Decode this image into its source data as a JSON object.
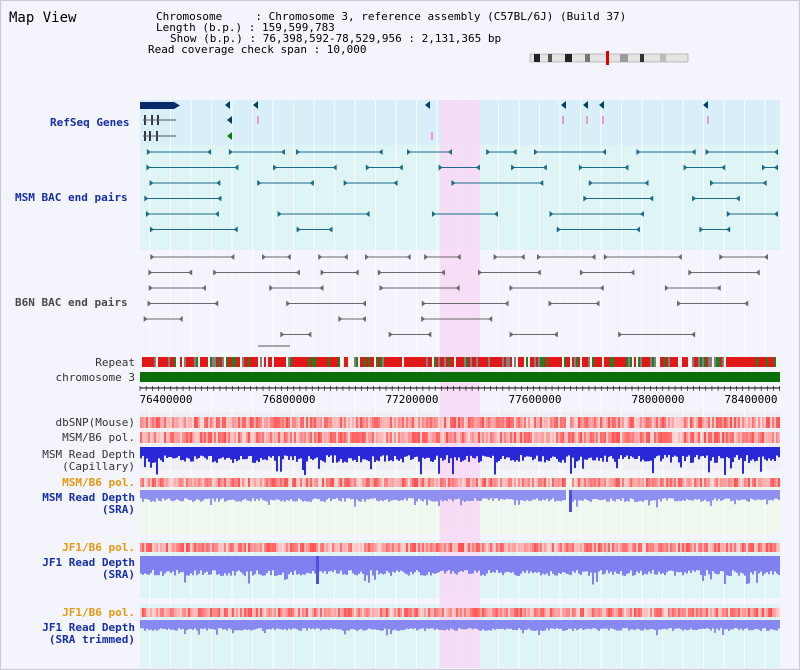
{
  "title": "Map View",
  "info": {
    "chromosome": "Chromosome     : Chromosome 3, reference assembly (C57BL/6J) (Build 37)",
    "length": "Length (b.p.) : 159,599,783",
    "show": "Show (b.p.) : 76,398,592-78,529,956 : 2,131,365 bp",
    "span": "Read coverage check span : 10,000"
  },
  "tracks": {
    "refseq": "RefSeq Genes",
    "msm_bac": "MSM BAC end pairs",
    "b6n_bac": "B6N BAC end pairs",
    "repeat": "Repeat",
    "chromosome": "chromosome 3",
    "dbsnp": "dbSNP(Mouse)",
    "msm_pol": "MSM/B6 pol.",
    "msm_depth_cap_1": "MSM Read Depth",
    "msm_depth_cap_2": "(Capillary)",
    "msm_pol_sra": "MSM/B6 pol.",
    "msm_depth_sra_1": "MSM Read Depth",
    "msm_depth_sra_2": "(SRA)",
    "jf1_pol": "JF1/B6 pol.",
    "jf1_depth_1": "JF1 Read Depth",
    "jf1_depth_2": "(SRA)",
    "jf1_pol_t": "JF1/B6 pol.",
    "jf1_depth_t_1": "JF1 Read Depth",
    "jf1_depth_t_2": "(SRA trimmed)"
  },
  "axis": {
    "ticks": [
      "76400000",
      "76800000",
      "77200000",
      "77600000",
      "78000000",
      "78400000"
    ]
  },
  "colors": {
    "highlight": "#f8d8f4",
    "refseq_bg": "#d8eef8",
    "msm_bg": "#dff4f4",
    "b6n_bg": "#eef0f6",
    "chromosome_bar": "#0a6e0a",
    "snp_red": "#e83030",
    "depth_blue": "#2828d8",
    "depth_light_blue": "#8080f0"
  }
}
